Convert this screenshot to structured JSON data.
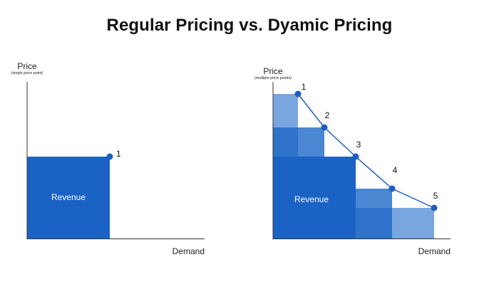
{
  "title": "Regular Pricing vs. Dyamic Pricing",
  "colors": {
    "revenue_dark": "#1a63c4",
    "block_mid": "#2e72cb",
    "block_light": "#4a86d2",
    "block_lighter": "#7aa6e0",
    "line": "#1d5fbf",
    "axis": "#333333"
  },
  "left_panel": {
    "y_axis_title": "Price",
    "y_axis_subtitle": "(single price point)",
    "x_axis_title": "Demand",
    "revenue_label": "Revenue",
    "points": [
      {
        "label": "1"
      }
    ]
  },
  "right_panel": {
    "y_axis_title": "Price",
    "y_axis_subtitle": "(multiple price points)",
    "x_axis_title": "Demand",
    "revenue_label": "Revenue",
    "points": [
      {
        "label": "1"
      },
      {
        "label": "2"
      },
      {
        "label": "3"
      },
      {
        "label": "4"
      },
      {
        "label": "5"
      }
    ]
  }
}
